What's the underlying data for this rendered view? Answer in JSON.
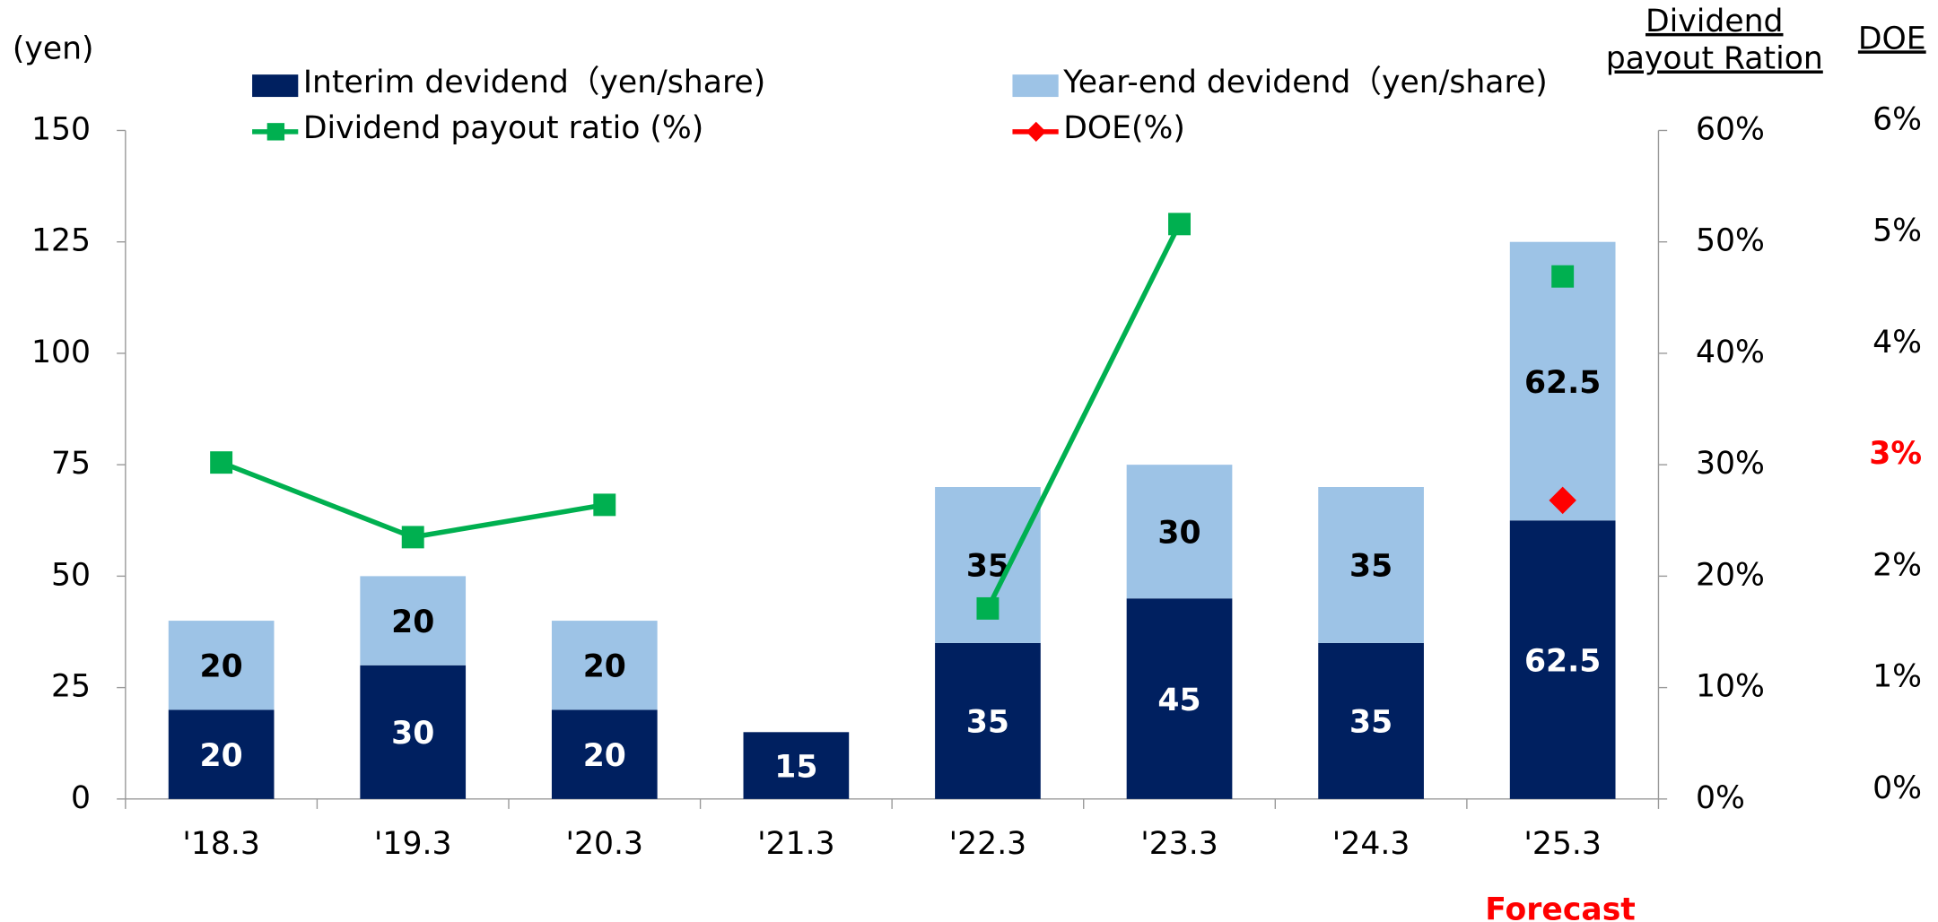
{
  "chart_data": {
    "type": "bar",
    "ylabel": "(yen)",
    "y2label": [
      "Dividend",
      "payout Ration"
    ],
    "y3label": "DOE",
    "annotation": "Forecast",
    "categories": [
      "'18.3",
      "'19.3",
      "'20.3",
      "'21.3",
      "'22.3",
      "'23.3",
      "'24.3",
      "'25.3"
    ],
    "series": [
      {
        "name": "Interim devidend（yen/share)",
        "type": "bar",
        "color": "#002060",
        "label_color": "#ffffff",
        "values": [
          20,
          30,
          20,
          15,
          35,
          45,
          35,
          62.5
        ]
      },
      {
        "name": "Year-end devidend（yen/share)",
        "type": "bar",
        "color": "#9dc3e6",
        "label_color": "#000000",
        "values": [
          20,
          20,
          20,
          null,
          35,
          30,
          35,
          62.5
        ]
      },
      {
        "name": "Dividend payout ratio (%)",
        "type": "line",
        "axis": "y2",
        "marker": "square",
        "color": "#00b050",
        "values": [
          30.2,
          23.5,
          26.4,
          null,
          17.1,
          51.6,
          null,
          46.9
        ]
      },
      {
        "name": "DOE(%)",
        "type": "line",
        "axis": "y3",
        "marker": "diamond",
        "color": "#ff0000",
        "values": [
          null,
          null,
          null,
          null,
          null,
          null,
          null,
          2.68
        ]
      }
    ],
    "ylim": [
      0,
      150
    ],
    "yticks": [
      0,
      25,
      50,
      75,
      100,
      125,
      150
    ],
    "y2lim": [
      0,
      60
    ],
    "y2ticks": [
      {
        "value": 0,
        "label": "0%"
      },
      {
        "value": 10,
        "label": "10%"
      },
      {
        "value": 20,
        "label": "20%"
      },
      {
        "value": 30,
        "label": "30%"
      },
      {
        "value": 40,
        "label": "40%"
      },
      {
        "value": 50,
        "label": "50%"
      },
      {
        "value": 60,
        "label": "60%"
      }
    ],
    "y3lim": [
      0,
      6
    ],
    "y3ticks": [
      {
        "value": 0,
        "label": "0%"
      },
      {
        "value": 1,
        "label": "1%"
      },
      {
        "value": 2,
        "label": "2%"
      },
      {
        "value": 3,
        "label": "3%",
        "color": "#ff0000"
      },
      {
        "value": 4,
        "label": "4%"
      },
      {
        "value": 5,
        "label": "5%"
      },
      {
        "value": 6,
        "label": "6%"
      }
    ],
    "grid": false
  }
}
